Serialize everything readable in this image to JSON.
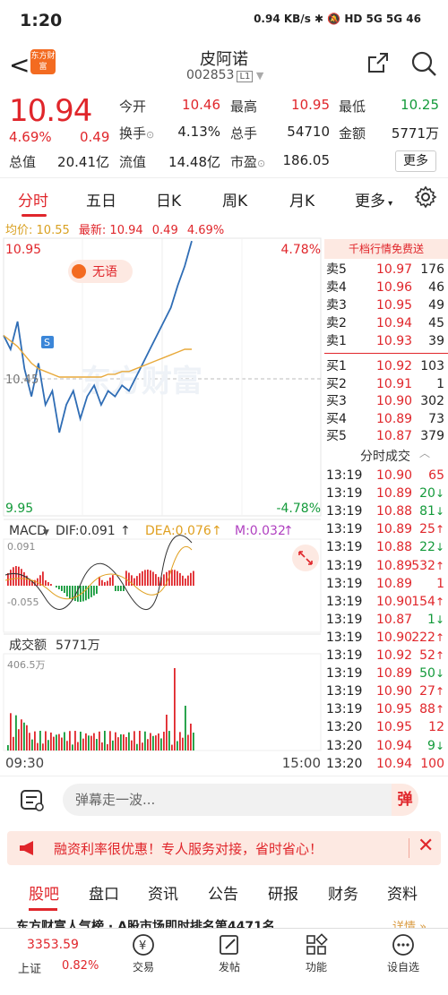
{
  "status": {
    "time": "1:20",
    "indicators": "0.94 KB/s  ✱  🔕  HD  5G  5G  46"
  },
  "header": {
    "back": "<",
    "logo": "东方财富",
    "name": "皮阿诺",
    "code": "002853",
    "code_badge": "L1"
  },
  "quote": {
    "price": "10.94",
    "pct": "4.69%",
    "chg": "0.49",
    "fields": [
      {
        "label": "今开",
        "value": "10.46",
        "color": "red"
      },
      {
        "label": "最高",
        "value": "10.95",
        "color": "red"
      },
      {
        "label": "最低",
        "value": "10.25",
        "color": "green"
      },
      {
        "label": "换手",
        "value": "4.13%",
        "color": "dark"
      },
      {
        "label": "总手",
        "value": "54710",
        "color": "dark"
      },
      {
        "label": "金额",
        "value": "5771万",
        "color": "dark"
      },
      {
        "label": "总值",
        "value": "20.41亿",
        "color": "dark"
      },
      {
        "label": "流值",
        "value": "14.48亿",
        "color": "dark"
      },
      {
        "label": "市盈",
        "value": "186.05",
        "color": "dark"
      }
    ],
    "more": "更多"
  },
  "tabs": [
    "分时",
    "五日",
    "日K",
    "周K",
    "月K",
    "更多"
  ],
  "avgline": {
    "avg_label": "均价:",
    "avg": "10.55",
    "latest_label": "最新:",
    "latest": "10.94",
    "chg": "0.49",
    "pct": "4.69%"
  },
  "chart": {
    "top_price": "10.95",
    "top_pct": "4.78%",
    "mid_price": "10.45",
    "bottom_price": "9.95",
    "bottom_pct": "-4.78%",
    "badge": "无语",
    "macd": {
      "label": "MACD",
      "dif": "DIF:0.091",
      "dea": "DEA:0.076",
      "m": "M:0.032",
      "top": "0.091",
      "bottom": "-0.055"
    },
    "volume": {
      "label": "成交额",
      "value": "5771万",
      "max": "406.5万"
    },
    "time_start": "09:30",
    "time_end": "15:00"
  },
  "chart_data": {
    "type": "line",
    "title": "",
    "ylim": [
      9.95,
      10.95
    ],
    "series": [
      {
        "values": [
          10.6,
          10.55,
          10.65,
          10.48,
          10.38,
          10.5,
          10.35,
          10.4,
          10.25,
          10.35,
          10.4,
          10.3,
          10.38,
          10.42,
          10.35,
          10.4,
          10.38,
          10.42,
          10.4,
          10.45,
          10.5,
          10.55,
          10.6,
          10.65,
          10.7,
          10.78,
          10.85,
          10.94
        ]
      },
      {
        "values": [
          10.6,
          10.58,
          10.56,
          10.53,
          10.5,
          10.48,
          10.47,
          10.46,
          10.45,
          10.45,
          10.45,
          10.45,
          10.45,
          10.45,
          10.45,
          10.46,
          10.46,
          10.47,
          10.47,
          10.48,
          10.49,
          10.5,
          10.51,
          10.52,
          10.53,
          10.54,
          10.55,
          10.55
        ]
      }
    ]
  },
  "orderbook": {
    "head": "千档行情免费送",
    "asks": [
      {
        "name": "卖5",
        "price": "10.97",
        "vol": "176"
      },
      {
        "name": "卖4",
        "price": "10.96",
        "vol": "46"
      },
      {
        "name": "卖3",
        "price": "10.95",
        "vol": "49"
      },
      {
        "name": "卖2",
        "price": "10.94",
        "vol": "45"
      },
      {
        "name": "卖1",
        "price": "10.93",
        "vol": "39"
      }
    ],
    "bids": [
      {
        "name": "买1",
        "price": "10.92",
        "vol": "103"
      },
      {
        "name": "买2",
        "price": "10.91",
        "vol": "1"
      },
      {
        "name": "买3",
        "price": "10.90",
        "vol": "302"
      },
      {
        "name": "买4",
        "price": "10.89",
        "vol": "73"
      },
      {
        "name": "买5",
        "price": "10.87",
        "vol": "379"
      }
    ],
    "ticks_title": "分时成交",
    "ticks": [
      {
        "t": "13:19",
        "p": "10.90",
        "v": "65",
        "d": ""
      },
      {
        "t": "13:19",
        "p": "10.89",
        "v": "20",
        "d": "↓"
      },
      {
        "t": "13:19",
        "p": "10.88",
        "v": "81",
        "d": "↓"
      },
      {
        "t": "13:19",
        "p": "10.89",
        "v": "25",
        "d": "↑"
      },
      {
        "t": "13:19",
        "p": "10.88",
        "v": "22",
        "d": "↓"
      },
      {
        "t": "13:19",
        "p": "10.89",
        "v": "532",
        "d": "↑"
      },
      {
        "t": "13:19",
        "p": "10.89",
        "v": "1",
        "d": ""
      },
      {
        "t": "13:19",
        "p": "10.90",
        "v": "154",
        "d": "↑"
      },
      {
        "t": "13:19",
        "p": "10.87",
        "v": "1",
        "d": "↓"
      },
      {
        "t": "13:19",
        "p": "10.90",
        "v": "222",
        "d": "↑"
      },
      {
        "t": "13:19",
        "p": "10.92",
        "v": "52",
        "d": "↑"
      },
      {
        "t": "13:19",
        "p": "10.89",
        "v": "50",
        "d": "↓"
      },
      {
        "t": "13:19",
        "p": "10.90",
        "v": "27",
        "d": "↑"
      },
      {
        "t": "13:19",
        "p": "10.95",
        "v": "88",
        "d": "↑"
      },
      {
        "t": "13:20",
        "p": "10.95",
        "v": "12",
        "d": ""
      },
      {
        "t": "13:20",
        "p": "10.94",
        "v": "9",
        "d": "↓"
      },
      {
        "t": "13:20",
        "p": "10.94",
        "v": "100",
        "d": ""
      }
    ]
  },
  "danmu": {
    "placeholder": "弹幕走一波...",
    "btn": "弹"
  },
  "banner": {
    "text": "融资利率很优惠！专人服务对接，省时省心！"
  },
  "subtabs": [
    "股吧",
    "盘口",
    "资讯",
    "公告",
    "研报",
    "财务",
    "资料"
  ],
  "teaser": {
    "text": "东方财富人气榜 · A股市场即时排名第4471名",
    "more": "详情 »"
  },
  "bottombar": {
    "index_value": "3353.59",
    "index_name": "上证",
    "index_pct": "0.82%",
    "items": [
      "交易",
      "发帖",
      "功能",
      "设自选"
    ]
  },
  "colors": {
    "up": "#e0262b",
    "down": "#139a3a",
    "accent": "#f36b21"
  }
}
